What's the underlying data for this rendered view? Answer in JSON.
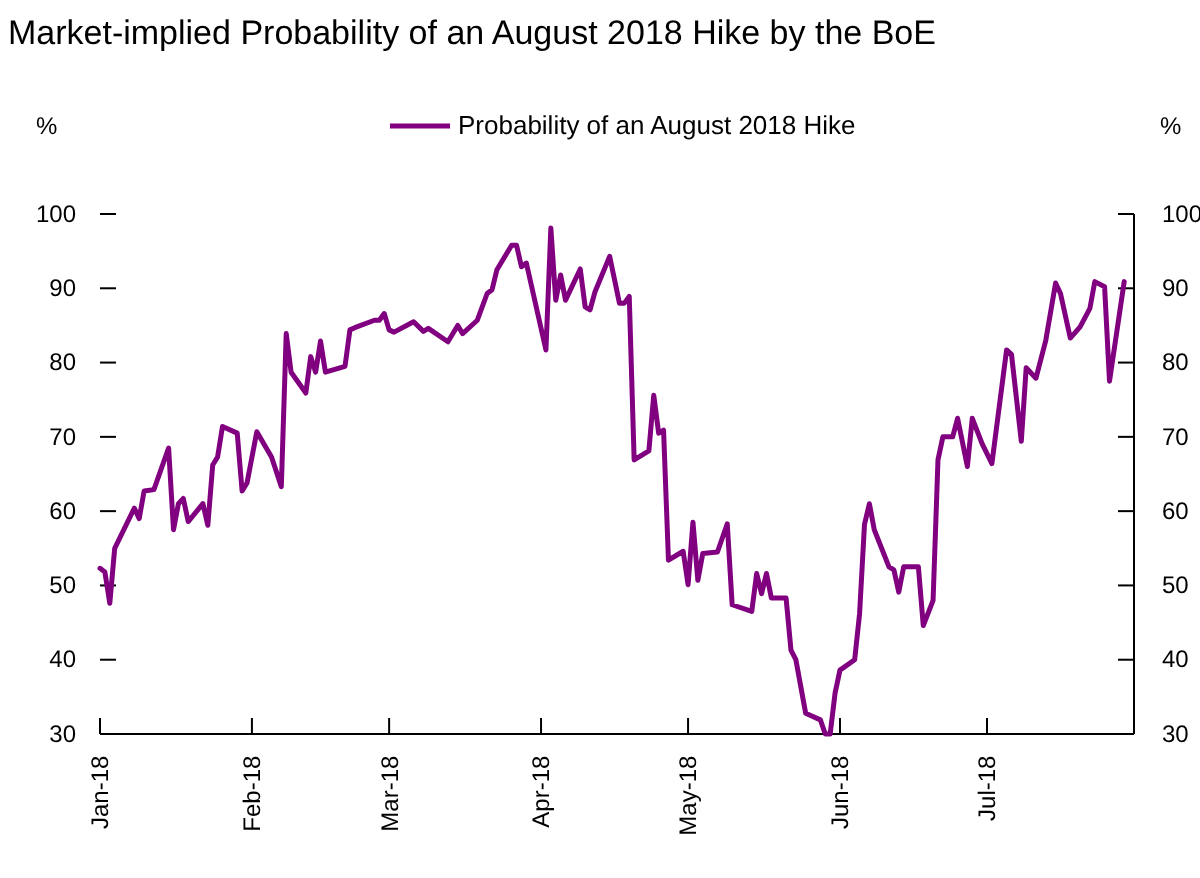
{
  "chart_data": {
    "type": "line",
    "title": "Market-implied Probability of an August 2018 Hike by the BoE",
    "ylabel": "%",
    "y2label": "%",
    "legend": "top",
    "x": [
      "2018-01-01",
      "2018-01-02",
      "2018-01-03",
      "2018-01-04",
      "2018-01-08",
      "2018-01-09",
      "2018-01-10",
      "2018-01-12",
      "2018-01-15",
      "2018-01-16",
      "2018-01-17",
      "2018-01-18",
      "2018-01-19",
      "2018-01-22",
      "2018-01-23",
      "2018-01-24",
      "2018-01-25",
      "2018-01-26",
      "2018-01-29",
      "2018-01-30",
      "2018-01-31",
      "2018-02-02",
      "2018-02-05",
      "2018-02-07",
      "2018-02-08",
      "2018-02-09",
      "2018-02-12",
      "2018-02-13",
      "2018-02-14",
      "2018-02-15",
      "2018-02-16",
      "2018-02-20",
      "2018-02-21",
      "2018-02-22",
      "2018-02-26",
      "2018-02-27",
      "2018-02-28",
      "2018-03-01",
      "2018-03-02",
      "2018-03-06",
      "2018-03-08",
      "2018-03-09",
      "2018-03-13",
      "2018-03-15",
      "2018-03-16",
      "2018-03-19",
      "2018-03-21",
      "2018-03-22",
      "2018-03-23",
      "2018-03-26",
      "2018-03-27",
      "2018-03-28",
      "2018-03-29",
      "2018-04-02",
      "2018-04-03",
      "2018-04-04",
      "2018-04-05",
      "2018-04-06",
      "2018-04-09",
      "2018-04-10",
      "2018-04-11",
      "2018-04-12",
      "2018-04-15",
      "2018-04-17",
      "2018-04-18",
      "2018-04-19",
      "2018-04-20",
      "2018-04-23",
      "2018-04-24",
      "2018-04-25",
      "2018-04-26",
      "2018-04-27",
      "2018-04-30",
      "2018-05-01",
      "2018-05-02",
      "2018-05-03",
      "2018-05-04",
      "2018-05-07",
      "2018-05-09",
      "2018-05-10",
      "2018-05-14",
      "2018-05-15",
      "2018-05-16",
      "2018-05-17",
      "2018-05-18",
      "2018-05-21",
      "2018-05-22",
      "2018-05-23",
      "2018-05-25",
      "2018-05-28",
      "2018-05-29",
      "2018-05-30",
      "2018-05-31",
      "2018-06-01",
      "2018-06-04",
      "2018-06-05",
      "2018-06-06",
      "2018-06-07",
      "2018-06-08",
      "2018-06-11",
      "2018-06-12",
      "2018-06-13",
      "2018-06-14",
      "2018-06-17",
      "2018-06-18",
      "2018-06-20",
      "2018-06-21",
      "2018-06-22",
      "2018-06-24",
      "2018-06-25",
      "2018-06-27",
      "2018-06-28",
      "2018-06-30",
      "2018-07-02",
      "2018-07-05",
      "2018-07-06",
      "2018-07-08",
      "2018-07-09",
      "2018-07-11",
      "2018-07-13",
      "2018-07-15",
      "2018-07-16",
      "2018-07-18",
      "2018-07-20",
      "2018-07-22",
      "2018-07-23",
      "2018-07-25",
      "2018-07-26",
      "2018-07-29"
    ],
    "series": [
      {
        "name": "Probability of an August 2018 Hike",
        "color": "#800080",
        "values": [
          52.3,
          51.8,
          47.6,
          55.0,
          60.4,
          59.0,
          62.7,
          62.9,
          68.5,
          57.5,
          61.0,
          61.7,
          58.6,
          61.0,
          58.1,
          66.2,
          67.3,
          71.4,
          70.5,
          62.7,
          63.8,
          70.7,
          67.3,
          63.3,
          83.9,
          78.7,
          75.9,
          80.8,
          78.7,
          82.9,
          78.7,
          79.5,
          84.4,
          84.7,
          85.7,
          85.7,
          86.6,
          84.4,
          84.1,
          85.5,
          84.2,
          84.6,
          82.8,
          85.0,
          83.9,
          85.7,
          89.3,
          89.8,
          92.5,
          95.8,
          95.8,
          92.9,
          93.4,
          81.7,
          98.1,
          88.4,
          91.8,
          88.4,
          92.6,
          87.5,
          87.1,
          89.5,
          94.3,
          88.0,
          88.0,
          88.9,
          66.9,
          68.1,
          75.6,
          70.5,
          70.9,
          53.4,
          54.6,
          50.1,
          58.5,
          50.7,
          54.3,
          54.5,
          58.3,
          47.4,
          46.5,
          51.6,
          48.9,
          51.6,
          48.3,
          48.3,
          41.3,
          40.0,
          32.8,
          31.9,
          30,
          30,
          35.5,
          38.6,
          40.0,
          46.2,
          58.2,
          61.0,
          57.5,
          52.5,
          52.1,
          49.1,
          52.5,
          52.5,
          44.6,
          48.0,
          66.9,
          70.0,
          70.0,
          72.5,
          66.0,
          72.5,
          69.1,
          66.4,
          81.7,
          81.1,
          69.4,
          79.3,
          77.9,
          83.0,
          90.7,
          89.3,
          83.3,
          84.8,
          87.3,
          90.9,
          90.2,
          77.5,
          90.9
        ]
      }
    ],
    "xlim": [
      "2018-01-01",
      "2018-07-31"
    ],
    "xticks": [
      {
        "value": "2018-01-01",
        "label": "Jan-18"
      },
      {
        "value": "2018-02-01",
        "label": "Feb-18"
      },
      {
        "value": "2018-03-01",
        "label": "Mar-18"
      },
      {
        "value": "2018-04-01",
        "label": "Apr-18"
      },
      {
        "value": "2018-05-01",
        "label": "May-18"
      },
      {
        "value": "2018-06-01",
        "label": "Jun-18"
      },
      {
        "value": "2018-07-01",
        "label": "Jul-18"
      }
    ],
    "ylim": [
      30,
      100
    ],
    "yticks": [
      30,
      40,
      50,
      60,
      70,
      80,
      90,
      100
    ],
    "y2lim": [
      30,
      100
    ],
    "y2ticks": [
      30,
      40,
      50,
      60,
      70,
      80,
      90,
      100
    ]
  }
}
